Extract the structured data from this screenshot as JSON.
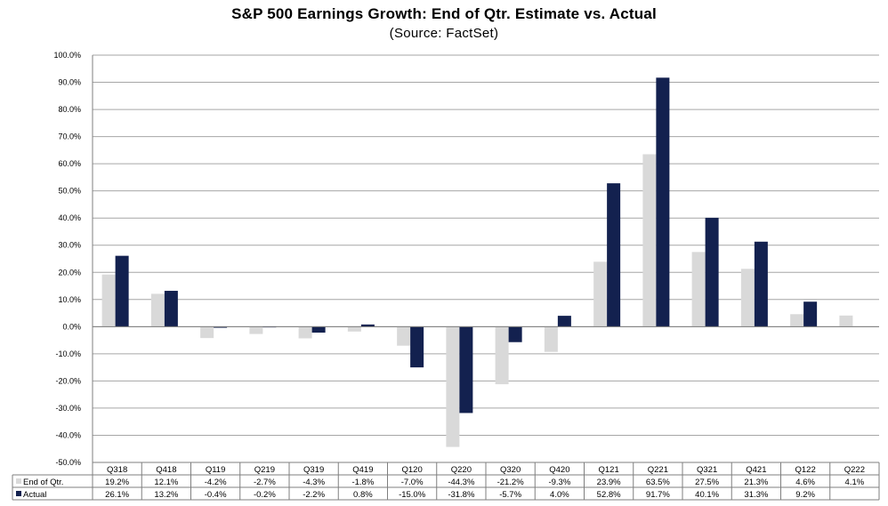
{
  "chart_data": {
    "type": "bar",
    "title": "S&P 500 Earnings Growth: End of Qtr. Estimate vs. Actual",
    "subtitle": "(Source: FactSet)",
    "categories": [
      "Q318",
      "Q418",
      "Q119",
      "Q219",
      "Q319",
      "Q419",
      "Q120",
      "Q220",
      "Q320",
      "Q420",
      "Q121",
      "Q221",
      "Q321",
      "Q421",
      "Q122",
      "Q222"
    ],
    "series": [
      {
        "name": "End of Qtr.",
        "color": "#d9d9d9",
        "values": [
          19.2,
          12.1,
          -4.2,
          -2.7,
          -4.3,
          -1.8,
          -7.0,
          -44.3,
          -21.2,
          -9.3,
          23.9,
          63.5,
          27.5,
          21.3,
          4.6,
          4.1
        ],
        "labels": [
          "19.2%",
          "12.1%",
          "-4.2%",
          "-2.7%",
          "-4.3%",
          "-1.8%",
          "-7.0%",
          "-44.3%",
          "-21.2%",
          "-9.3%",
          "23.9%",
          "63.5%",
          "27.5%",
          "21.3%",
          "4.6%",
          "4.1%"
        ]
      },
      {
        "name": "Actual",
        "color": "#13214f",
        "values": [
          26.1,
          13.2,
          -0.4,
          -0.2,
          -2.2,
          0.8,
          -15.0,
          -31.8,
          -5.7,
          4.0,
          52.8,
          91.7,
          40.1,
          31.3,
          9.2,
          null
        ],
        "labels": [
          "26.1%",
          "13.2%",
          "-0.4%",
          "-0.2%",
          "-2.2%",
          "0.8%",
          "-15.0%",
          "-31.8%",
          "-5.7%",
          "4.0%",
          "52.8%",
          "91.7%",
          "40.1%",
          "31.3%",
          "9.2%",
          ""
        ]
      }
    ],
    "ylim": [
      -50,
      100
    ],
    "yticks": [
      "100.0%",
      "90.0%",
      "80.0%",
      "70.0%",
      "60.0%",
      "50.0%",
      "40.0%",
      "30.0%",
      "20.0%",
      "10.0%",
      "0.0%",
      "-10.0%",
      "-20.0%",
      "-30.0%",
      "-40.0%",
      "-50.0%"
    ],
    "grid": true,
    "legend_placement": "data-table"
  }
}
